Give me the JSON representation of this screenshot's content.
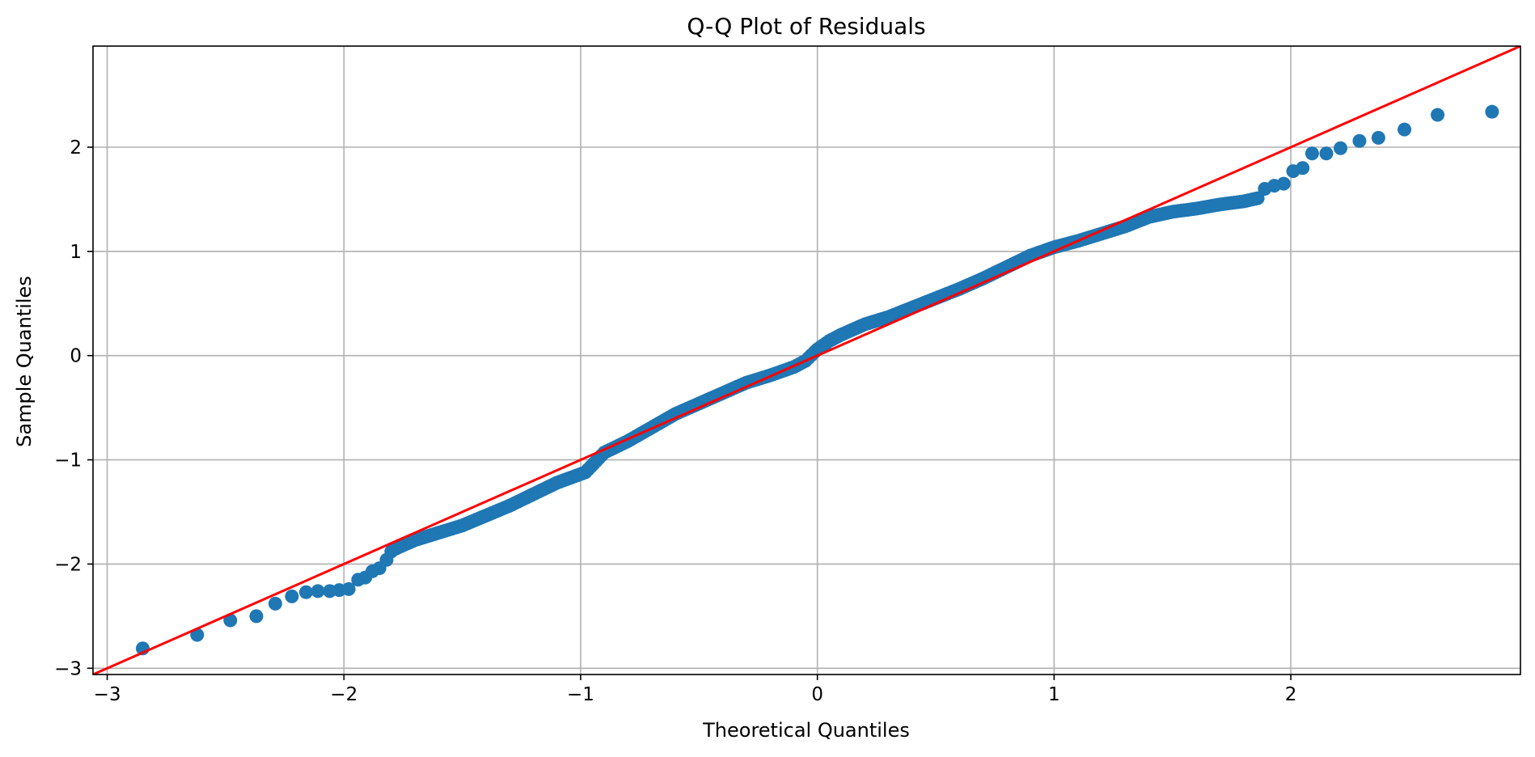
{
  "chart_data": {
    "type": "scatter",
    "title": "Q-Q Plot of Residuals",
    "xlabel": "Theoretical Quantiles",
    "ylabel": "Sample Quantiles",
    "xlim": [
      -3.06,
      2.97
    ],
    "ylim": [
      -3.06,
      2.97
    ],
    "xticks": [
      -3,
      -2,
      -1,
      0,
      1,
      2
    ],
    "yticks": [
      -3,
      -2,
      -1,
      0,
      1,
      2
    ],
    "xtick_labels": [
      "−3",
      "−2",
      "−1",
      "0",
      "1",
      "2"
    ],
    "ytick_labels": [
      "−3",
      "−2",
      "−1",
      "0",
      "1",
      "2"
    ],
    "grid": true,
    "legend": "none",
    "colors": {
      "points": "#1f77b4",
      "reference_line": "#ff0000",
      "grid": "#b0b0b0"
    },
    "reference_line": {
      "x": [
        -3.06,
        2.97
      ],
      "y": [
        -3.06,
        2.97
      ]
    },
    "curve_anchors": {
      "x": [
        -1.78,
        -1.7,
        -1.5,
        -1.3,
        -1.1,
        -0.98,
        -0.9,
        -0.8,
        -0.6,
        -0.5,
        -0.4,
        -0.3,
        -0.2,
        -0.1,
        -0.05,
        0.0,
        0.05,
        0.1,
        0.2,
        0.3,
        0.4,
        0.5,
        0.6,
        0.7,
        0.8,
        0.9,
        1.0,
        1.1,
        1.2,
        1.3,
        1.4,
        1.5,
        1.6,
        1.7,
        1.8,
        1.86
      ],
      "y": [
        -1.85,
        -1.77,
        -1.63,
        -1.44,
        -1.22,
        -1.12,
        -0.93,
        -0.82,
        -0.56,
        -0.46,
        -0.36,
        -0.26,
        -0.19,
        -0.11,
        -0.05,
        0.06,
        0.14,
        0.2,
        0.3,
        0.37,
        0.46,
        0.55,
        0.64,
        0.74,
        0.85,
        0.96,
        1.04,
        1.1,
        1.17,
        1.24,
        1.33,
        1.38,
        1.41,
        1.45,
        1.48,
        1.51
      ]
    },
    "points": {
      "x": [
        -2.85,
        -2.62,
        -2.48,
        -2.37,
        -2.29,
        -2.22,
        -2.16,
        -2.11,
        -2.06,
        -2.02,
        -1.98,
        -1.94,
        -1.91,
        -1.88,
        -1.85,
        -1.82,
        -1.8,
        -1.78,
        1.89,
        1.93,
        1.97,
        2.01,
        2.05,
        2.09,
        2.15,
        2.21,
        2.29,
        2.37,
        2.48,
        2.62,
        2.85
      ],
      "y": [
        -2.81,
        -2.68,
        -2.54,
        -2.5,
        -2.38,
        -2.31,
        -2.27,
        -2.26,
        -2.26,
        -2.25,
        -2.24,
        -2.15,
        -2.13,
        -2.07,
        -2.04,
        -1.96,
        -1.88,
        -1.85,
        1.6,
        1.63,
        1.65,
        1.77,
        1.8,
        1.94,
        1.94,
        1.99,
        2.06,
        2.09,
        2.17,
        2.31,
        2.34
      ]
    }
  }
}
